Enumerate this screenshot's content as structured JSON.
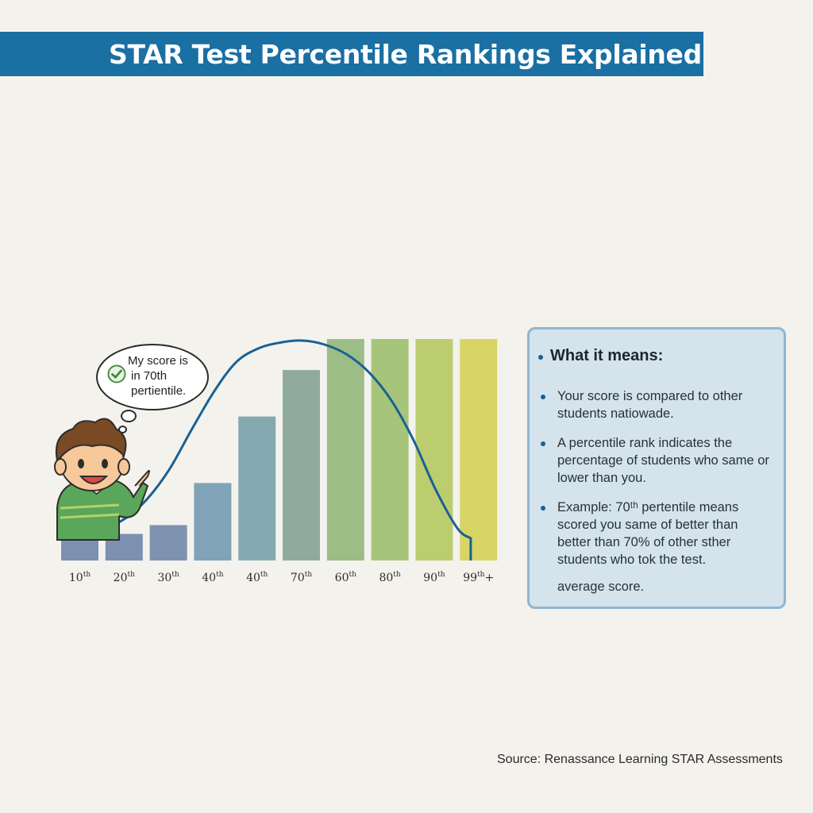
{
  "title": "STAR Test Percentile Rankings Explained",
  "bubble": {
    "lines": [
      "My score is",
      "in 70th",
      "pertientile."
    ],
    "icon": "check-circle-icon"
  },
  "character": {
    "icon": "boy-pointing-icon"
  },
  "chart_data": {
    "type": "bar",
    "categories": [
      {
        "num": "10",
        "sup": "th",
        "suffix": ""
      },
      {
        "num": "20",
        "sup": "th",
        "suffix": ""
      },
      {
        "num": "30",
        "sup": "th",
        "suffix": ""
      },
      {
        "num": "40",
        "sup": "th",
        "suffix": ""
      },
      {
        "num": "40",
        "sup": "th",
        "suffix": ""
      },
      {
        "num": "70",
        "sup": "th",
        "suffix": ""
      },
      {
        "num": "60",
        "sup": "th",
        "suffix": ""
      },
      {
        "num": "80",
        "sup": "th",
        "suffix": ""
      },
      {
        "num": "90",
        "sup": "th",
        "suffix": ""
      },
      {
        "num": "99",
        "sup": "th",
        "suffix": "+"
      }
    ],
    "values": [
      0.12,
      0.12,
      0.16,
      0.35,
      0.65,
      0.86,
      1.0,
      1.0,
      1.0,
      1.0
    ],
    "curve": {
      "x": [
        0,
        0.5,
        1,
        1.5,
        2,
        2.5,
        3,
        3.5,
        4,
        4.5,
        5,
        5.5,
        6,
        6.5,
        7,
        7.5,
        8,
        8.5,
        9,
        9.3
      ],
      "y": [
        0.02,
        0.03,
        0.05,
        0.1,
        0.2,
        0.35,
        0.55,
        0.74,
        0.89,
        0.96,
        0.99,
        1.0,
        0.98,
        0.93,
        0.84,
        0.7,
        0.5,
        0.25,
        0.05,
        0.0
      ]
    },
    "colors": [
      "#7d90b2",
      "#7d90b2",
      "#7e93b0",
      "#80a3b8",
      "#85a9b0",
      "#8fab9e",
      "#9dbd86",
      "#a6c57a",
      "#bccd70",
      "#d7d565"
    ],
    "curve_color": "#1a6193",
    "xlabel": "",
    "ylabel": "",
    "grid": false
  },
  "info": {
    "heading": "What it means:",
    "items": [
      [
        "Your score is compared to other",
        "students natiowade."
      ],
      [
        "A percentile rank indicates the",
        "percentage of studenŧs who same or",
        "lower than you."
      ],
      [
        "Example: 70ᵗʰ pertentile means",
        "scored you same of better than",
        "better than 70% of other sther",
        "students who tok the test."
      ]
    ],
    "footer": "average score."
  },
  "source": "Source: Renassance Learning STAR Assessments"
}
